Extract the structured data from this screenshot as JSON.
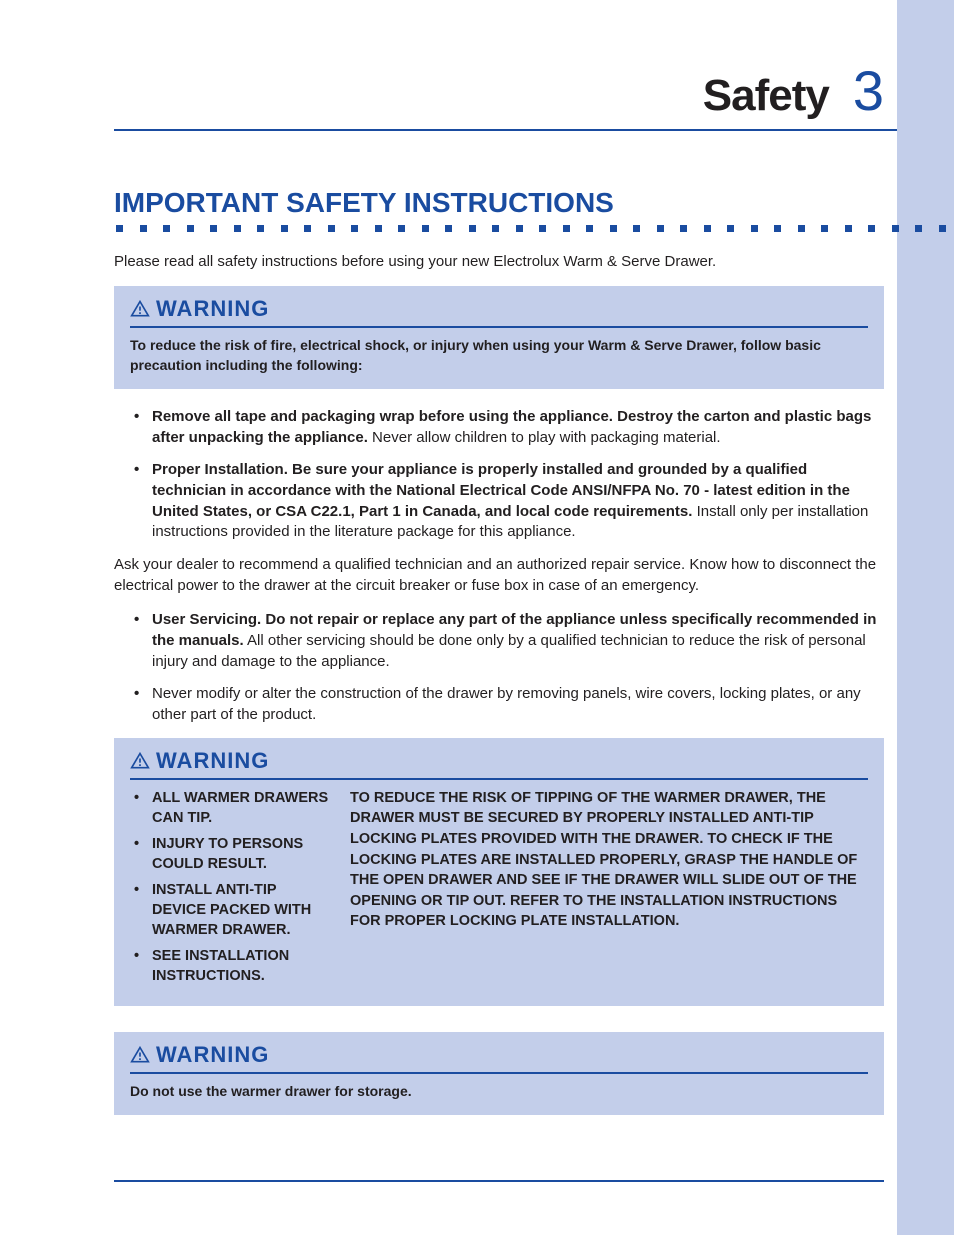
{
  "colors": {
    "accent": "#1a4ca0",
    "band": "#c3ceea",
    "text": "#221f20",
    "bg": "#ffffff"
  },
  "header": {
    "title": "Safety",
    "page_number": "3"
  },
  "section_title": "IMPORTANT SAFETY INSTRUCTIONS",
  "intro": "Please read all safety instructions before using your new Electrolux Warm & Serve Drawer.",
  "warning_label": "WARNING",
  "warning1": {
    "text": "To reduce the risk of fire, electrical shock, or injury when using your Warm & Serve Drawer, follow basic precaution including the following:"
  },
  "bullet1": {
    "bold": "Remove all tape and packaging wrap before using the appliance. Destroy the carton and plastic bags after unpacking the appliance.",
    "rest": " Never allow children to play with packaging material."
  },
  "bullet2": {
    "bold": "Proper Installation. Be sure your appliance is properly installed and grounded by a qualified technician in  accordance with the National Electrical Code ANSI/NFPA No. 70 - latest edition in the United States, or CSA C22.1, Part 1 in Canada, and local code requirements.",
    "rest": " Install only per installation instructions provided in the literature package for this appliance."
  },
  "para1": "Ask your dealer to recommend a qualified technician and an authorized repair service. Know how to disconnect the electrical power to the drawer at the circuit breaker or fuse box in case of an emergency.",
  "bullet3": {
    "bold": "User Servicing. Do not repair or replace any part of the appliance unless specifically recommended in the manuals.",
    "rest": " All other servicing should be done only by a qualified technician to reduce the risk of personal injury and damage to the appliance."
  },
  "bullet4": "Never modify or alter the construction of the drawer by removing panels, wire covers, locking plates, or any other part of  the product.",
  "warning2": {
    "left_items": [
      "ALL WARMER DRAWERS CAN TIP.",
      "INJURY TO PERSONS COULD RESULT.",
      "INSTALL ANTI-TIP DEVICE PACKED WITH WARMER DRAWER.",
      "SEE INSTALLATION INSTRUCTIONS."
    ],
    "right_text": "TO REDUCE THE RISK OF TIPPING OF THE WARMER DRAWER, THE DRAWER MUST BE SECURED BY PROPERLY INSTALLED ANTI-TIP LOCKING PLATES PROVIDED WITH THE DRAWER. TO CHECK IF THE LOCKING PLATES ARE INSTALLED PROPERLY, GRASP THE HANDLE OF THE OPEN DRAWER AND SEE IF THE DRAWER WILL SLIDE OUT OF THE OPENING OR TIP OUT. REFER TO THE INSTALLATION INSTRUCTIONS FOR PROPER LOCKING PLATE INSTALLATION."
  },
  "warning3": {
    "text": "Do not use the warmer drawer for storage."
  },
  "dot_count": 36
}
